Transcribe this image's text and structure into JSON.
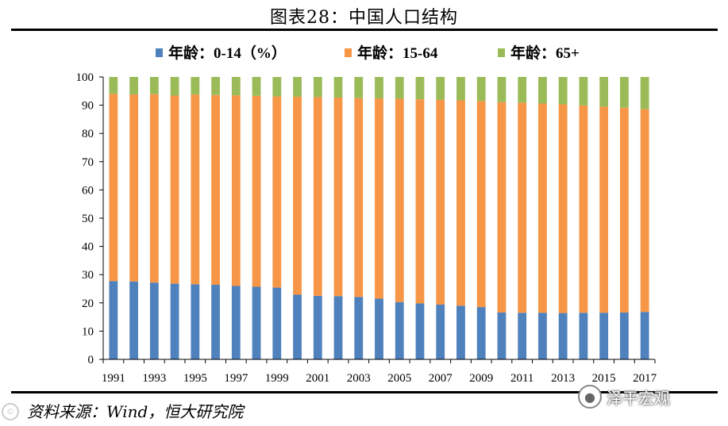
{
  "header": {
    "title": "图表28：中国人口结构"
  },
  "footer": {
    "source": "资料来源：Wind，恒大研究院"
  },
  "watermark": {
    "text": "泽平宏观",
    "icon": "wechat-icon"
  },
  "colors": {
    "series0": "#4F81BD",
    "series1": "#F79646",
    "series2": "#9BBB59",
    "axis": "#000000"
  },
  "chart_data": {
    "type": "bar",
    "stacked": true,
    "title": "中国人口结构",
    "categories": [
      "1991",
      "1992",
      "1993",
      "1994",
      "1995",
      "1996",
      "1997",
      "1998",
      "1999",
      "2000",
      "2001",
      "2002",
      "2003",
      "2004",
      "2005",
      "2006",
      "2007",
      "2008",
      "2009",
      "2010",
      "2011",
      "2012",
      "2013",
      "2014",
      "2015",
      "2016",
      "2017"
    ],
    "tick_labels": [
      "1991",
      "1993",
      "1995",
      "1997",
      "1999",
      "2001",
      "2003",
      "2005",
      "2007",
      "2009",
      "2011",
      "2013",
      "2015",
      "2017"
    ],
    "series": [
      {
        "name": "年龄：0-14（%）",
        "values": [
          27.7,
          27.6,
          27.2,
          26.8,
          26.6,
          26.4,
          26.0,
          25.7,
          25.4,
          22.9,
          22.5,
          22.4,
          22.1,
          21.5,
          20.3,
          19.8,
          19.4,
          19.0,
          18.5,
          16.6,
          16.5,
          16.5,
          16.4,
          16.5,
          16.5,
          16.6,
          16.8
        ]
      },
      {
        "name": "年龄：15-64",
        "values": [
          66.3,
          66.2,
          66.7,
          66.6,
          67.2,
          67.2,
          67.5,
          67.6,
          67.7,
          70.1,
          70.4,
          70.3,
          70.4,
          70.9,
          72.0,
          72.3,
          72.5,
          72.7,
          73.0,
          74.5,
          74.4,
          74.1,
          73.9,
          73.4,
          73.0,
          72.5,
          71.8
        ]
      },
      {
        "name": "年龄：65+",
        "values": [
          6.0,
          6.2,
          6.1,
          6.6,
          6.2,
          6.4,
          6.5,
          6.7,
          6.9,
          7.0,
          7.1,
          7.3,
          7.5,
          7.6,
          7.7,
          7.9,
          8.1,
          8.3,
          8.5,
          8.9,
          9.1,
          9.4,
          9.7,
          10.1,
          10.5,
          10.9,
          11.4
        ]
      }
    ],
    "xlabel": "",
    "ylabel": "",
    "ylim": [
      0,
      100
    ],
    "yticks": [
      0,
      10,
      20,
      30,
      40,
      50,
      60,
      70,
      80,
      90,
      100
    ],
    "legend_position": "top"
  }
}
